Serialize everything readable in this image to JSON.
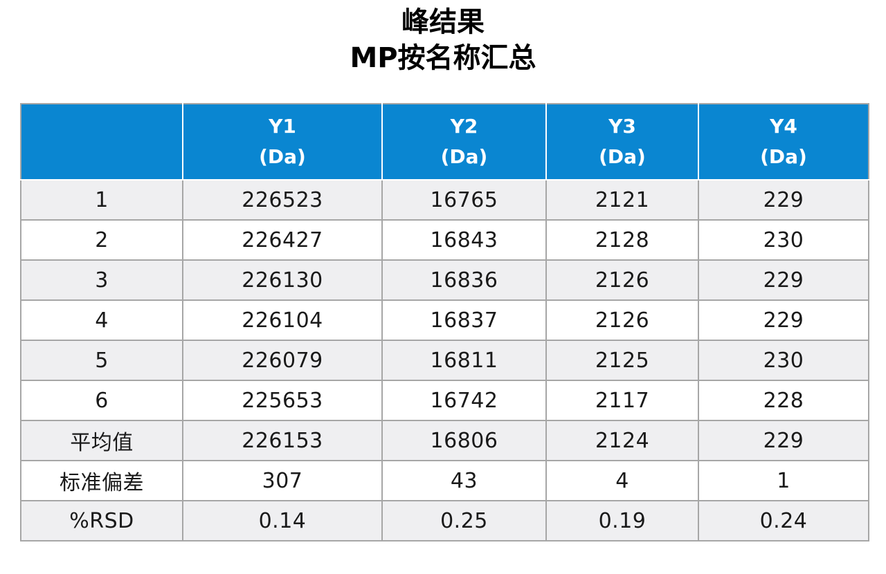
{
  "title": {
    "line1": "峰结果",
    "line2": "MP按名称汇总"
  },
  "colors": {
    "header_bg": "#0a86d1",
    "header_text": "#ffffff",
    "stripe_bg": "#efeff1",
    "border": "#a6a6a6"
  },
  "chart_data": {
    "type": "table",
    "columns": [
      {
        "name": "",
        "unit": ""
      },
      {
        "name": "Y1",
        "unit": "(Da)"
      },
      {
        "name": "Y2",
        "unit": "(Da)"
      },
      {
        "name": "Y3",
        "unit": "(Da)"
      },
      {
        "name": "Y4",
        "unit": "(Da)"
      }
    ],
    "rows": [
      [
        "1",
        "226523",
        "16765",
        "2121",
        "229"
      ],
      [
        "2",
        "226427",
        "16843",
        "2128",
        "230"
      ],
      [
        "3",
        "226130",
        "16836",
        "2126",
        "229"
      ],
      [
        "4",
        "226104",
        "16837",
        "2126",
        "229"
      ],
      [
        "5",
        "226079",
        "16811",
        "2125",
        "230"
      ],
      [
        "6",
        "225653",
        "16742",
        "2117",
        "228"
      ],
      [
        "平均值",
        "226153",
        "16806",
        "2124",
        "229"
      ],
      [
        "标准偏差",
        "307",
        "43",
        "4",
        "1"
      ],
      [
        "%RSD",
        "0.14",
        "0.25",
        "0.19",
        "0.24"
      ]
    ]
  }
}
